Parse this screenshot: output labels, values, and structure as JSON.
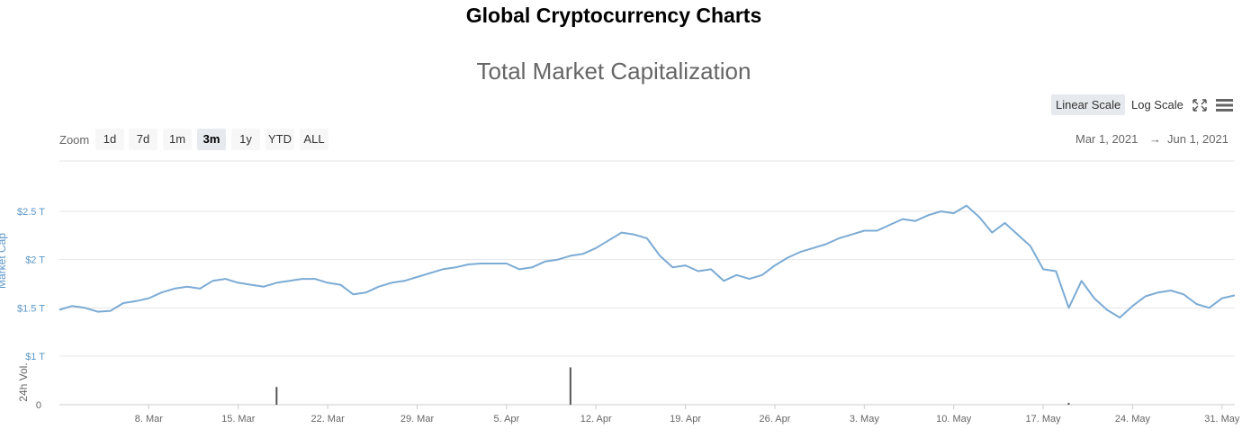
{
  "page": {
    "title": "Global Cryptocurrency Charts"
  },
  "toolbar": {
    "linear_scale": "Linear Scale",
    "log_scale": "Log Scale",
    "active_scale": "Linear Scale",
    "icons": [
      "fullscreen-icon",
      "hamburger-menu-icon"
    ]
  },
  "range_selector": {
    "zoom_label": "Zoom",
    "buttons": [
      "1d",
      "7d",
      "1m",
      "3m",
      "1y",
      "YTD",
      "ALL"
    ],
    "active": "3m",
    "from": "Mar 1, 2021",
    "arrow": "→",
    "to": "Jun 1, 2021"
  },
  "colors": {
    "line": "#7cabd4",
    "axis_text": "#5a96c8",
    "volume_bar": "#555555",
    "grid": "#e6e6e6"
  },
  "chart_data": {
    "type": "line",
    "title": "Total Market Capitalization",
    "x_axis": {
      "type": "date",
      "range": [
        "2021-03-01",
        "2021-06-01"
      ],
      "tick_labels": [
        "8. Mar",
        "15. Mar",
        "22. Mar",
        "29. Mar",
        "5. Apr",
        "12. Apr",
        "19. Apr",
        "26. Apr",
        "3. May",
        "10. May",
        "17. May",
        "24. May",
        "31. May"
      ]
    },
    "y_axis_market_cap": {
      "label": "Market Cap",
      "tick_labels": [
        "$1 T",
        "$1.5 T",
        "$2 T",
        "$2.5 T"
      ],
      "ylim": [
        1.0,
        2.75
      ]
    },
    "y_axis_volume": {
      "label": "24h Vol.",
      "tick_labels": [
        "0"
      ]
    },
    "grid": true,
    "legend": "none",
    "series": [
      {
        "name": "Market Cap",
        "unit": "$ T",
        "x": [
          "2021-03-01",
          "2021-03-02",
          "2021-03-03",
          "2021-03-04",
          "2021-03-05",
          "2021-03-06",
          "2021-03-07",
          "2021-03-08",
          "2021-03-09",
          "2021-03-10",
          "2021-03-11",
          "2021-03-12",
          "2021-03-13",
          "2021-03-14",
          "2021-03-15",
          "2021-03-16",
          "2021-03-17",
          "2021-03-18",
          "2021-03-19",
          "2021-03-20",
          "2021-03-21",
          "2021-03-22",
          "2021-03-23",
          "2021-03-24",
          "2021-03-25",
          "2021-03-26",
          "2021-03-27",
          "2021-03-28",
          "2021-03-29",
          "2021-03-30",
          "2021-03-31",
          "2021-04-01",
          "2021-04-02",
          "2021-04-03",
          "2021-04-04",
          "2021-04-05",
          "2021-04-06",
          "2021-04-07",
          "2021-04-08",
          "2021-04-09",
          "2021-04-10",
          "2021-04-11",
          "2021-04-12",
          "2021-04-13",
          "2021-04-14",
          "2021-04-15",
          "2021-04-16",
          "2021-04-17",
          "2021-04-18",
          "2021-04-19",
          "2021-04-20",
          "2021-04-21",
          "2021-04-22",
          "2021-04-23",
          "2021-04-24",
          "2021-04-25",
          "2021-04-26",
          "2021-04-27",
          "2021-04-28",
          "2021-04-29",
          "2021-04-30",
          "2021-05-01",
          "2021-05-02",
          "2021-05-03",
          "2021-05-04",
          "2021-05-05",
          "2021-05-06",
          "2021-05-07",
          "2021-05-08",
          "2021-05-09",
          "2021-05-10",
          "2021-05-11",
          "2021-05-12",
          "2021-05-13",
          "2021-05-14",
          "2021-05-15",
          "2021-05-16",
          "2021-05-17",
          "2021-05-18",
          "2021-05-19",
          "2021-05-20",
          "2021-05-21",
          "2021-05-22",
          "2021-05-23",
          "2021-05-24",
          "2021-05-25",
          "2021-05-26",
          "2021-05-27",
          "2021-05-28",
          "2021-05-29",
          "2021-05-30",
          "2021-05-31",
          "2021-06-01"
        ],
        "values": [
          1.48,
          1.52,
          1.5,
          1.46,
          1.47,
          1.55,
          1.57,
          1.6,
          1.66,
          1.7,
          1.72,
          1.7,
          1.78,
          1.8,
          1.76,
          1.74,
          1.72,
          1.76,
          1.78,
          1.8,
          1.8,
          1.76,
          1.74,
          1.64,
          1.66,
          1.72,
          1.76,
          1.78,
          1.82,
          1.86,
          1.9,
          1.92,
          1.95,
          1.96,
          1.96,
          1.96,
          1.9,
          1.92,
          1.98,
          2.0,
          2.04,
          2.06,
          2.12,
          2.2,
          2.28,
          2.26,
          2.22,
          2.04,
          1.92,
          1.94,
          1.88,
          1.9,
          1.78,
          1.84,
          1.8,
          1.84,
          1.94,
          2.02,
          2.08,
          2.12,
          2.16,
          2.22,
          2.26,
          2.3,
          2.3,
          2.36,
          2.42,
          2.4,
          2.46,
          2.5,
          2.48,
          2.56,
          2.44,
          2.28,
          2.38,
          2.26,
          2.14,
          1.9,
          1.88,
          1.5,
          1.78,
          1.6,
          1.48,
          1.4,
          1.52,
          1.62,
          1.66,
          1.68,
          1.64,
          1.54,
          1.5,
          1.6,
          1.63
        ]
      },
      {
        "name": "24h Vol.",
        "x": [
          "2021-03-18",
          "2021-04-10",
          "2021-05-19"
        ],
        "values": [
          0.38,
          0.8,
          0.04
        ]
      }
    ]
  }
}
